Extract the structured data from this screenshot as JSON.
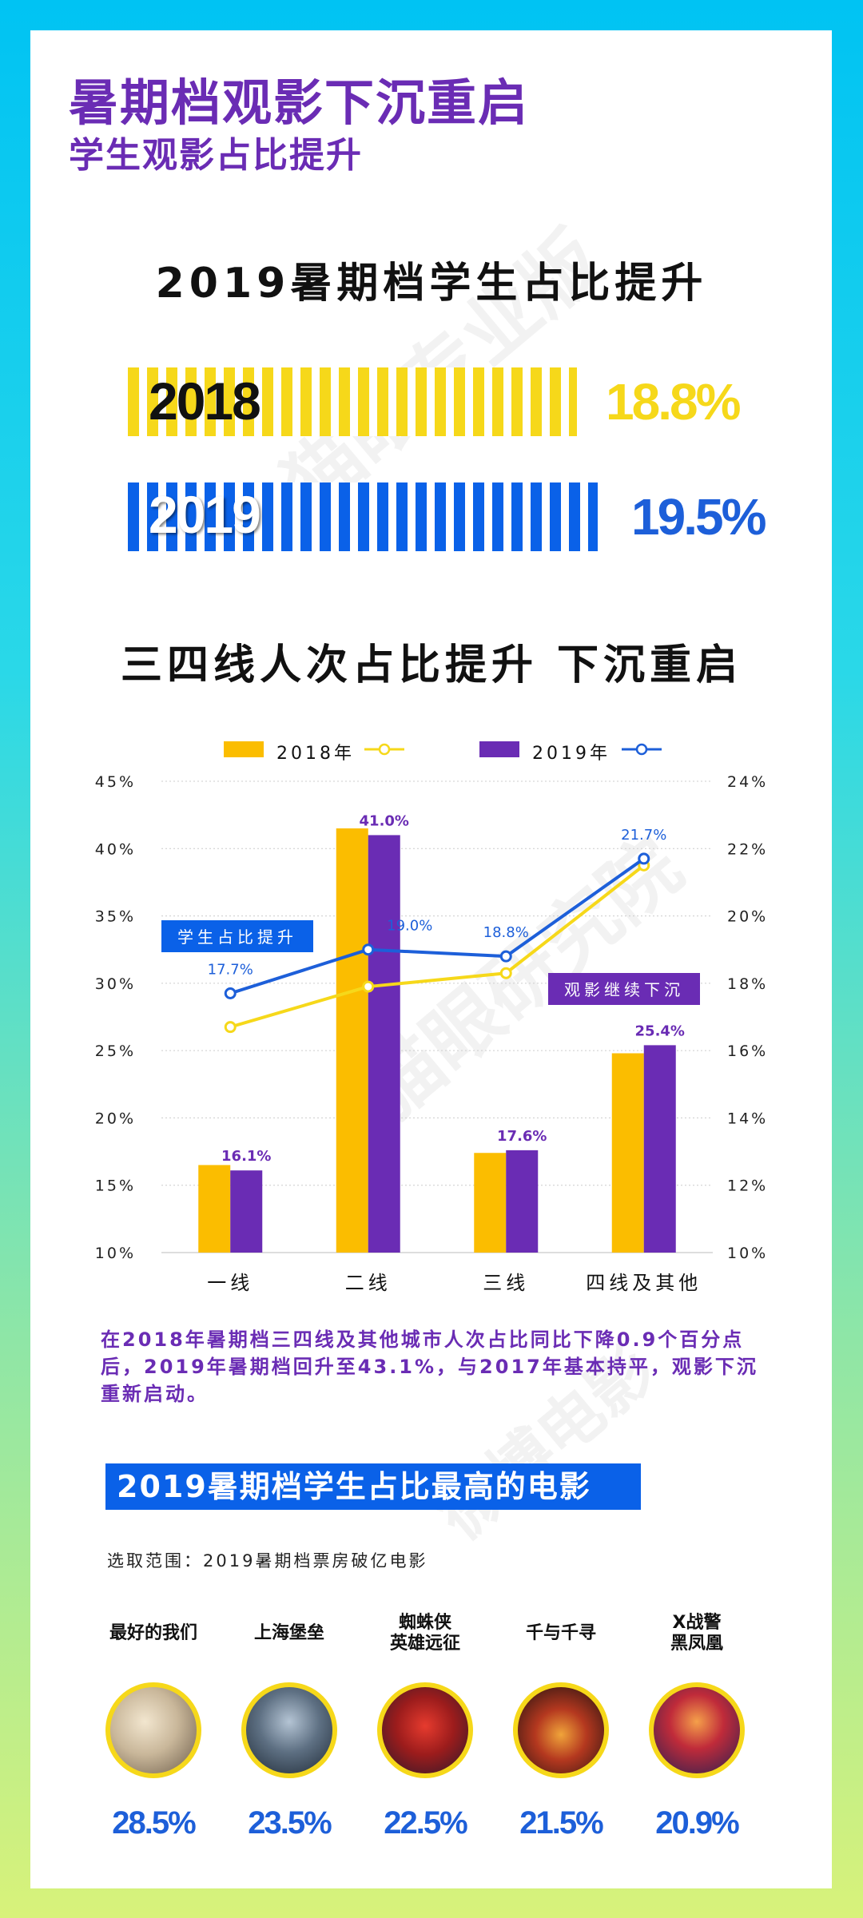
{
  "header": {
    "title": "暑期档观影下沉重启",
    "subtitle": "学生观影占比提升"
  },
  "watermarks": [
    "猫眼专业版",
    "猫眼研究院",
    "微博电影"
  ],
  "section1": {
    "title": "2019暑期档学生占比提升",
    "bars": [
      {
        "year": "2018",
        "pct_label": "18.8%",
        "value": 18.8,
        "color": "#f6d81a"
      },
      {
        "year": "2019",
        "pct_label": "19.5%",
        "value": 19.5,
        "color": "#0a61e8"
      }
    ]
  },
  "section2": {
    "title": "三四线人次占比提升 下沉重启"
  },
  "legend": {
    "y2018": "2018年",
    "y2019": "2019年"
  },
  "callouts": {
    "left": "学生占比提升",
    "right": "观影继续下沉"
  },
  "chart_data": {
    "type": "bar",
    "categories": [
      "一线",
      "二线",
      "三线",
      "四线及其他"
    ],
    "series": [
      {
        "name": "2018年",
        "kind": "bar",
        "axis": "left",
        "color": "#fbbd00",
        "values": [
          16.5,
          41.5,
          17.4,
          24.8
        ]
      },
      {
        "name": "2019年",
        "kind": "bar",
        "axis": "left",
        "color": "#6a2cb4",
        "values": [
          16.1,
          41.0,
          17.6,
          25.4
        ],
        "labels": [
          "16.1%",
          "41.0%",
          "17.6%",
          "25.4%"
        ]
      },
      {
        "name": "2018年",
        "kind": "line",
        "axis": "right",
        "color": "#f6d81a",
        "values": [
          16.7,
          17.9,
          18.3,
          21.5
        ]
      },
      {
        "name": "2019年",
        "kind": "line",
        "axis": "right",
        "color": "#1d5fd9",
        "values": [
          17.7,
          19.0,
          18.8,
          21.7
        ],
        "labels": [
          "17.7%",
          "19.0%",
          "18.8%",
          "21.7%"
        ]
      }
    ],
    "left_axis": {
      "ylim": [
        10,
        45
      ],
      "ticks": [
        "45%",
        "40%",
        "35%",
        "30%",
        "25%",
        "20%",
        "15%",
        "10%"
      ]
    },
    "right_axis": {
      "ylim": [
        10,
        24
      ],
      "ticks": [
        "24%",
        "22%",
        "20%",
        "18%",
        "16%",
        "14%",
        "12%",
        "10%"
      ]
    },
    "grid": true,
    "legend_position": "top"
  },
  "note": "在2018年暑期档三四线及其他城市人次占比同比下降0.9个百分点后，2019年暑期档回升至43.1%，与2017年基本持平，观影下沉重新启动。",
  "movies_section": {
    "title": "2019暑期档学生占比最高的电影",
    "scope": "选取范围：2019暑期档票房破亿电影",
    "movies": [
      {
        "name_line1": "最好的我们",
        "name_line2": "",
        "pct": "28.5%"
      },
      {
        "name_line1": "上海堡垒",
        "name_line2": "",
        "pct": "23.5%"
      },
      {
        "name_line1": "蜘蛛侠",
        "name_line2": "英雄远征",
        "pct": "22.5%"
      },
      {
        "name_line1": "千与千寻",
        "name_line2": "",
        "pct": "21.5%"
      },
      {
        "name_line1": "X战警",
        "name_line2": "黑凤凰",
        "pct": "20.9%"
      }
    ]
  }
}
